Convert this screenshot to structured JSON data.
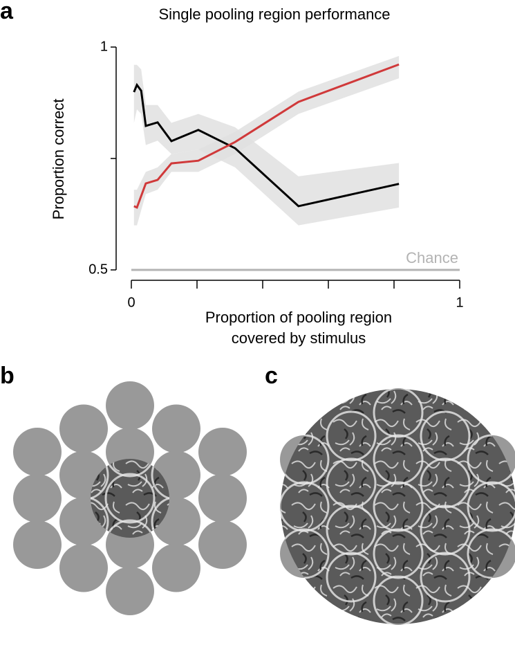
{
  "chart_data": {
    "type": "line",
    "panel_label": "a",
    "title": "Single pooling region performance",
    "ylabel": "Proportion correct",
    "xlabel": [
      "Proportion of pooling region",
      "covered by stimulus"
    ],
    "xlim": [
      0,
      1
    ],
    "ylim": [
      0.5,
      1
    ],
    "xticks": [
      0,
      1
    ],
    "xminor_ticks": [
      0.2,
      0.4,
      0.6,
      0.8
    ],
    "yticks": [
      0.5,
      1
    ],
    "yminor_ticks": [
      0.75
    ],
    "grid": false,
    "band_color": "#e0e0e0",
    "series": [
      {
        "color": "#000000",
        "x": [
          0.008,
          0.017,
          0.03,
          0.044,
          0.08,
          0.122,
          0.204,
          0.316,
          0.509,
          0.815
        ],
        "values": [
          0.899,
          0.915,
          0.902,
          0.823,
          0.831,
          0.789,
          0.814,
          0.773,
          0.643,
          0.693
        ],
        "upper": [
          0.96,
          0.96,
          0.95,
          0.87,
          0.87,
          0.83,
          0.85,
          0.82,
          0.71,
          0.74
        ],
        "lower": [
          0.83,
          0.86,
          0.85,
          0.78,
          0.79,
          0.76,
          0.77,
          0.73,
          0.6,
          0.64
        ]
      },
      {
        "color": "#d0393a",
        "x": [
          0.008,
          0.017,
          0.044,
          0.08,
          0.122,
          0.204,
          0.316,
          0.509,
          0.815
        ],
        "values": [
          0.643,
          0.64,
          0.694,
          0.702,
          0.739,
          0.745,
          0.787,
          0.877,
          0.961
        ],
        "upper": [
          0.68,
          0.68,
          0.72,
          0.73,
          0.76,
          0.77,
          0.81,
          0.9,
          0.98
        ],
        "lower": [
          0.6,
          0.6,
          0.67,
          0.68,
          0.72,
          0.72,
          0.76,
          0.85,
          0.93
        ]
      }
    ],
    "reference_line": {
      "value": 0.5,
      "label": "Chance",
      "color": "#b3b3b3"
    }
  },
  "panel_b": {
    "label": "b"
  },
  "panel_c": {
    "label": "c"
  }
}
